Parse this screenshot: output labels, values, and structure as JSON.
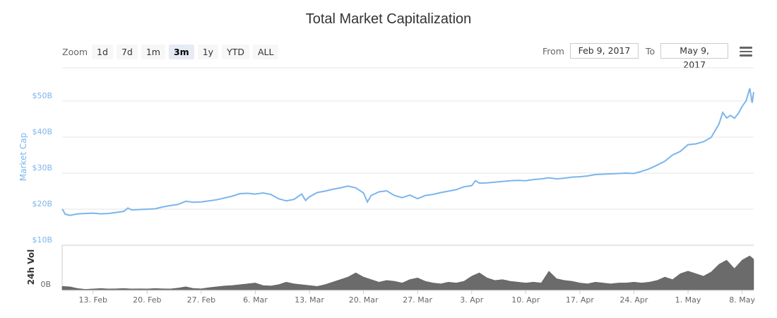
{
  "title": "Total Market Capitalization",
  "zoom": {
    "label": "Zoom",
    "buttons": [
      "1d",
      "7d",
      "1m",
      "3m",
      "1y",
      "YTD",
      "ALL"
    ],
    "active": "3m"
  },
  "range": {
    "from_label": "From",
    "from_value": "Feb 9, 2017",
    "to_label": "To",
    "to_value": "May 9, 2017"
  },
  "colors": {
    "line": "#7cb5ec",
    "volume": "#6b6b6b",
    "grid": "#e6e6e6",
    "axis_label": "#7cb5ec",
    "tick": "#666666"
  },
  "chart_data": {
    "type": "line",
    "ylabel": "Market Cap",
    "y_ticks": [
      "$10B",
      "$20B",
      "$30B",
      "$40B",
      "$50B"
    ],
    "y_tick_values": [
      10,
      20,
      30,
      40,
      50
    ],
    "ylim": [
      10,
      59
    ],
    "x_ticks": [
      "13. Feb",
      "20. Feb",
      "27. Feb",
      "6. Mar",
      "13. Mar",
      "20. Mar",
      "27. Mar",
      "3. Apr",
      "10. Apr",
      "17. Apr",
      "24. Apr",
      "1. May",
      "8. May"
    ],
    "x_tick_days": [
      4,
      11,
      18,
      25,
      32,
      39,
      46,
      53,
      60,
      67,
      74,
      81,
      88
    ],
    "xlim_days": [
      0,
      89.5
    ],
    "series": [
      {
        "values": [
          [
            0,
            20.1
          ],
          [
            0.4,
            18.6
          ],
          [
            1,
            18.3
          ],
          [
            2,
            18.7
          ],
          [
            3,
            18.8
          ],
          [
            4,
            18.9
          ],
          [
            5,
            18.7
          ],
          [
            6,
            18.8
          ],
          [
            7,
            19.1
          ],
          [
            8,
            19.4
          ],
          [
            8.5,
            20.3
          ],
          [
            9,
            19.8
          ],
          [
            10,
            19.9
          ],
          [
            11,
            20.0
          ],
          [
            12,
            20.1
          ],
          [
            13,
            20.6
          ],
          [
            14,
            21.0
          ],
          [
            15,
            21.3
          ],
          [
            16,
            22.2
          ],
          [
            17,
            21.9
          ],
          [
            18,
            22.0
          ],
          [
            19,
            22.3
          ],
          [
            20,
            22.6
          ],
          [
            21,
            23.1
          ],
          [
            22,
            23.6
          ],
          [
            23,
            24.3
          ],
          [
            24,
            24.4
          ],
          [
            25,
            24.2
          ],
          [
            26,
            24.5
          ],
          [
            27,
            24.1
          ],
          [
            28,
            22.9
          ],
          [
            29,
            22.3
          ],
          [
            30,
            22.7
          ],
          [
            31,
            24.2
          ],
          [
            31.5,
            22.4
          ],
          [
            32,
            23.4
          ],
          [
            33,
            24.6
          ],
          [
            34,
            25.0
          ],
          [
            35,
            25.5
          ],
          [
            36,
            25.9
          ],
          [
            37,
            26.4
          ],
          [
            38,
            25.9
          ],
          [
            39,
            24.5
          ],
          [
            39.5,
            22.0
          ],
          [
            40,
            23.8
          ],
          [
            41,
            24.8
          ],
          [
            42,
            25.1
          ],
          [
            43,
            23.8
          ],
          [
            44,
            23.2
          ],
          [
            45,
            23.9
          ],
          [
            46,
            22.9
          ],
          [
            47,
            23.8
          ],
          [
            48,
            24.1
          ],
          [
            49,
            24.6
          ],
          [
            50,
            25.0
          ],
          [
            51,
            25.4
          ],
          [
            52,
            26.2
          ],
          [
            53,
            26.5
          ],
          [
            53.5,
            27.9
          ],
          [
            54,
            27.2
          ],
          [
            55,
            27.3
          ],
          [
            56,
            27.5
          ],
          [
            57,
            27.7
          ],
          [
            58,
            27.9
          ],
          [
            59,
            28.0
          ],
          [
            60,
            27.9
          ],
          [
            61,
            28.2
          ],
          [
            62,
            28.4
          ],
          [
            63,
            28.7
          ],
          [
            64,
            28.4
          ],
          [
            65,
            28.6
          ],
          [
            66,
            28.9
          ],
          [
            67,
            29.0
          ],
          [
            68,
            29.2
          ],
          [
            69,
            29.6
          ],
          [
            70,
            29.7
          ],
          [
            71,
            29.8
          ],
          [
            72,
            29.9
          ],
          [
            73,
            30.0
          ],
          [
            74,
            29.9
          ],
          [
            75,
            30.5
          ],
          [
            76,
            31.2
          ],
          [
            77,
            32.2
          ],
          [
            78,
            33.3
          ],
          [
            79,
            35.0
          ],
          [
            80,
            36.0
          ],
          [
            81,
            37.9
          ],
          [
            82,
            38.1
          ],
          [
            83,
            38.7
          ],
          [
            84,
            39.9
          ],
          [
            85,
            43.6
          ],
          [
            85.5,
            46.8
          ],
          [
            86,
            45.3
          ],
          [
            86.5,
            46.0
          ],
          [
            87,
            45.2
          ],
          [
            87.5,
            46.5
          ],
          [
            88,
            48.5
          ],
          [
            88.5,
            50.0
          ],
          [
            89,
            53.5
          ],
          [
            89.3,
            49.5
          ],
          [
            89.5,
            52.5
          ]
        ]
      }
    ],
    "volume": {
      "ylabel": "24h Vol",
      "y_ticks": [
        "0B"
      ],
      "values": [
        [
          0,
          0.4
        ],
        [
          1,
          0.35
        ],
        [
          2,
          0.15
        ],
        [
          3,
          0.05
        ],
        [
          4,
          0.1
        ],
        [
          5,
          0.15
        ],
        [
          6,
          0.1
        ],
        [
          7,
          0.12
        ],
        [
          8,
          0.15
        ],
        [
          9,
          0.1
        ],
        [
          10,
          0.12
        ],
        [
          11,
          0.1
        ],
        [
          12,
          0.15
        ],
        [
          13,
          0.12
        ],
        [
          14,
          0.1
        ],
        [
          15,
          0.2
        ],
        [
          16,
          0.35
        ],
        [
          17,
          0.15
        ],
        [
          18,
          0.12
        ],
        [
          19,
          0.25
        ],
        [
          20,
          0.35
        ],
        [
          21,
          0.45
        ],
        [
          22,
          0.5
        ],
        [
          23,
          0.6
        ],
        [
          24,
          0.7
        ],
        [
          25,
          0.8
        ],
        [
          26,
          0.5
        ],
        [
          27,
          0.45
        ],
        [
          28,
          0.6
        ],
        [
          29,
          0.9
        ],
        [
          30,
          0.7
        ],
        [
          31,
          0.6
        ],
        [
          32,
          0.5
        ],
        [
          33,
          0.4
        ],
        [
          34,
          0.6
        ],
        [
          35,
          0.9
        ],
        [
          36,
          1.2
        ],
        [
          37,
          1.5
        ],
        [
          38,
          2.0
        ],
        [
          39,
          1.5
        ],
        [
          40,
          1.2
        ],
        [
          41,
          0.9
        ],
        [
          42,
          1.1
        ],
        [
          43,
          1.0
        ],
        [
          44,
          0.8
        ],
        [
          45,
          1.2
        ],
        [
          46,
          1.4
        ],
        [
          47,
          1.0
        ],
        [
          48,
          0.8
        ],
        [
          49,
          0.7
        ],
        [
          50,
          0.9
        ],
        [
          51,
          0.8
        ],
        [
          52,
          1.0
        ],
        [
          53,
          1.6
        ],
        [
          54,
          2.0
        ],
        [
          55,
          1.4
        ],
        [
          56,
          1.1
        ],
        [
          57,
          1.2
        ],
        [
          58,
          1.0
        ],
        [
          59,
          0.9
        ],
        [
          60,
          0.8
        ],
        [
          61,
          0.9
        ],
        [
          62,
          0.8
        ],
        [
          63,
          2.2
        ],
        [
          64,
          1.3
        ],
        [
          65,
          1.1
        ],
        [
          66,
          1.0
        ],
        [
          67,
          0.8
        ],
        [
          68,
          0.7
        ],
        [
          69,
          0.9
        ],
        [
          70,
          0.8
        ],
        [
          71,
          0.7
        ],
        [
          72,
          0.8
        ],
        [
          73,
          0.8
        ],
        [
          74,
          0.9
        ],
        [
          75,
          0.8
        ],
        [
          76,
          0.9
        ],
        [
          77,
          1.1
        ],
        [
          78,
          1.5
        ],
        [
          79,
          1.2
        ],
        [
          80,
          1.9
        ],
        [
          81,
          2.2
        ],
        [
          82,
          1.9
        ],
        [
          83,
          1.6
        ],
        [
          84,
          2.1
        ],
        [
          85,
          3.0
        ],
        [
          86,
          3.5
        ],
        [
          87,
          2.5
        ],
        [
          88,
          3.5
        ],
        [
          89,
          4.0
        ],
        [
          89.5,
          3.6
        ]
      ]
    }
  }
}
